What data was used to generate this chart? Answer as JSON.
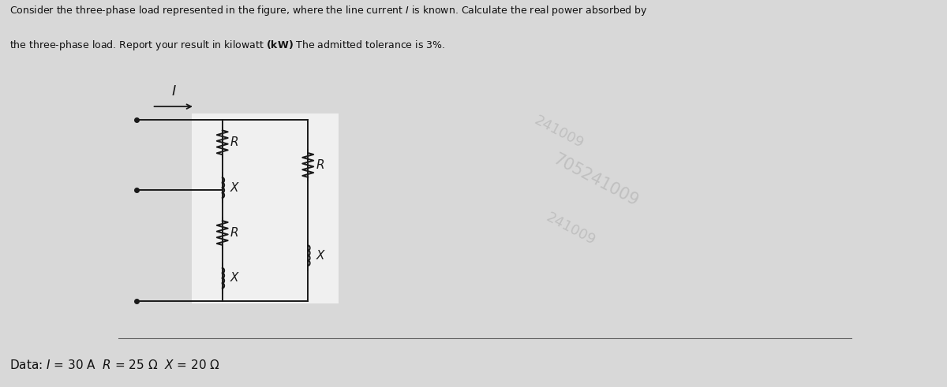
{
  "title_line1": "Consider the three-phase load represented in the figure, where the line current ℓ is known. Calculate the real power absorbed by",
  "title_line2": "the three-phase load. Report your result in kilowatt (kW) The admitted tolerance is 3%.",
  "data_label": "Data: / = 30 A  R = 25 Ω  X = 20 Ω",
  "bg_color": "#d8d8d8",
  "circuit_bg": "#e8e8e8",
  "text_color": "#111111",
  "circuit_color": "#1a1a1a",
  "watermark_texts": [
    "241009",
    "705241009",
    "241009"
  ],
  "watermark_color": "#b0b0b0",
  "fig_width": 12.0,
  "fig_height": 4.91,
  "header_fontsize": 9.0,
  "data_fontsize": 11.0
}
